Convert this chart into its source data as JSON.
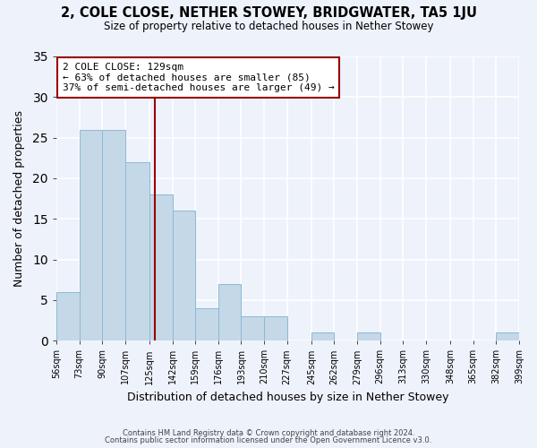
{
  "title": "2, COLE CLOSE, NETHER STOWEY, BRIDGWATER, TA5 1JU",
  "subtitle": "Size of property relative to detached houses in Nether Stowey",
  "xlabel": "Distribution of detached houses by size in Nether Stowey",
  "ylabel": "Number of detached properties",
  "bin_edges": [
    56,
    73,
    90,
    107,
    125,
    142,
    159,
    176,
    193,
    210,
    227,
    245,
    262,
    279,
    296,
    313,
    330,
    348,
    365,
    382,
    399
  ],
  "bin_labels": [
    "56sqm",
    "73sqm",
    "90sqm",
    "107sqm",
    "125sqm",
    "142sqm",
    "159sqm",
    "176sqm",
    "193sqm",
    "210sqm",
    "227sqm",
    "245sqm",
    "262sqm",
    "279sqm",
    "296sqm",
    "313sqm",
    "330sqm",
    "348sqm",
    "365sqm",
    "382sqm",
    "399sqm"
  ],
  "counts": [
    6,
    26,
    26,
    22,
    18,
    16,
    4,
    7,
    3,
    3,
    0,
    1,
    0,
    1,
    0,
    0,
    0,
    0,
    0,
    1
  ],
  "bar_color": "#C5D8E8",
  "bar_edge_color": "#8BBAD4",
  "vline_x": 129,
  "vline_color": "#990000",
  "annotation_text": "2 COLE CLOSE: 129sqm\n← 63% of detached houses are smaller (85)\n37% of semi-detached houses are larger (49) →",
  "annotation_box_color": "#990000",
  "ylim": [
    0,
    35
  ],
  "yticks": [
    0,
    5,
    10,
    15,
    20,
    25,
    30,
    35
  ],
  "background_color": "#eef2fb",
  "grid_color": "#ffffff",
  "footer_line1": "Contains HM Land Registry data © Crown copyright and database right 2024.",
  "footer_line2": "Contains public sector information licensed under the Open Government Licence v3.0."
}
